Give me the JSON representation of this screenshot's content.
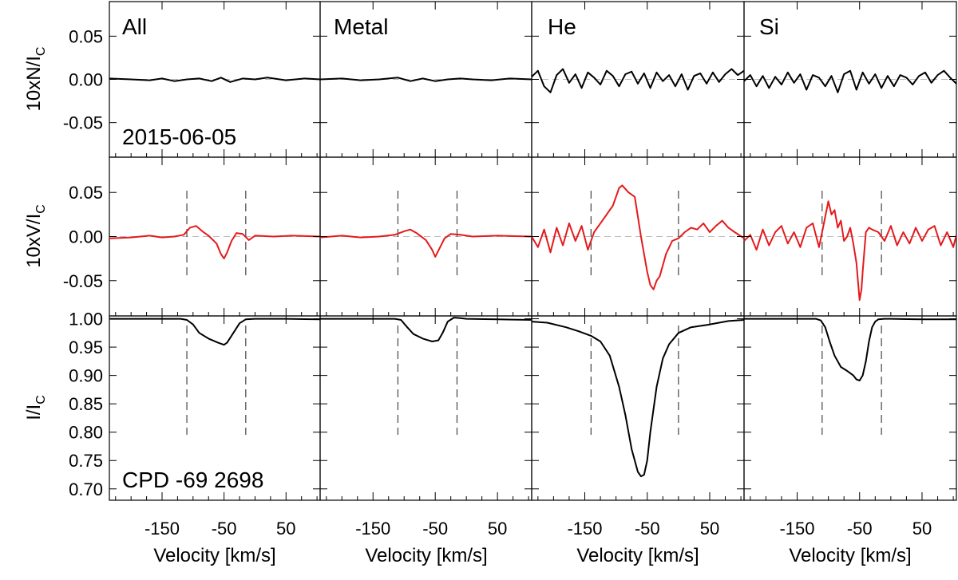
{
  "figure": {
    "date": "2015-06-05",
    "star": "CPD -69 2698",
    "columns": [
      "All",
      "Metal",
      "He",
      "Si"
    ],
    "xlabel": "Velocity [km/s]",
    "ylabels": {
      "N": "10xN/I",
      "V": "10xV/I",
      "I": "I/I",
      "subscript": "C"
    }
  },
  "chart_data": {
    "type": "line",
    "x_ticks": [
      -150,
      -50,
      50
    ],
    "xlim": [
      -235,
      105
    ],
    "rows": [
      {
        "id": "N",
        "ylim": [
          -0.09,
          0.09
        ],
        "yticks": [
          0.05,
          0.0,
          -0.05
        ],
        "ytick_labels": [
          "0.05",
          "0.00",
          "-0.05"
        ],
        "color": "#000000"
      },
      {
        "id": "V",
        "ylim": [
          -0.09,
          0.09
        ],
        "yticks": [
          0.05,
          0.0,
          -0.05
        ],
        "ytick_labels": [
          "0.05",
          "0.00",
          "-0.05"
        ],
        "color": "#e41a1c"
      },
      {
        "id": "I",
        "ylim": [
          0.68,
          1.005
        ],
        "yticks": [
          1.0,
          0.95,
          0.9,
          0.85,
          0.8,
          0.75,
          0.7
        ],
        "ytick_labels": [
          "1.00",
          "0.95",
          "0.90",
          "0.85",
          "0.80",
          "0.75",
          "0.70"
        ],
        "color": "#000000"
      }
    ],
    "integration_limits": {
      "All": [
        -110,
        -15
      ],
      "Metal": [
        -110,
        -15
      ],
      "He": [
        -140,
        0
      ],
      "Si": [
        -110,
        -15
      ]
    },
    "series": {
      "All": {
        "N": {
          "x": [
            -235,
            -200,
            -170,
            -150,
            -130,
            -110,
            -90,
            -70,
            -55,
            -40,
            -20,
            0,
            20,
            50,
            80,
            105
          ],
          "y": [
            0.001,
            0.0,
            -0.001,
            0.001,
            -0.002,
            0.0,
            0.001,
            -0.002,
            0.002,
            -0.003,
            0.001,
            0.0,
            0.002,
            -0.001,
            0.001,
            0.0
          ]
        },
        "V": {
          "x": [
            -235,
            -200,
            -170,
            -150,
            -130,
            -115,
            -105,
            -95,
            -85,
            -75,
            -62,
            -55,
            -50,
            -45,
            -38,
            -30,
            -20,
            -10,
            0,
            30,
            60,
            105
          ],
          "y": [
            -0.002,
            -0.001,
            0.001,
            -0.001,
            0.0,
            0.002,
            0.01,
            0.012,
            0.006,
            0.001,
            -0.008,
            -0.02,
            -0.025,
            -0.018,
            -0.005,
            0.004,
            0.003,
            -0.004,
            0.001,
            0.0,
            0.001,
            0.0
          ]
        },
        "I": {
          "x": [
            -235,
            -150,
            -120,
            -110,
            -100,
            -90,
            -75,
            -60,
            -50,
            -45,
            -35,
            -25,
            -15,
            0,
            50,
            105
          ],
          "y": [
            1.0,
            1.0,
            1.0,
            0.998,
            0.99,
            0.975,
            0.965,
            0.958,
            0.954,
            0.958,
            0.975,
            0.992,
            0.999,
            1.0,
            1.0,
            0.999
          ]
        }
      },
      "Metal": {
        "N": {
          "x": [
            -235,
            -200,
            -170,
            -140,
            -110,
            -90,
            -70,
            -50,
            -30,
            -10,
            10,
            40,
            70,
            105
          ],
          "y": [
            0.0,
            0.001,
            -0.001,
            0.0,
            0.002,
            -0.002,
            0.001,
            -0.002,
            0.0,
            0.001,
            0.0,
            -0.001,
            0.001,
            0.0
          ]
        },
        "V": {
          "x": [
            -235,
            -200,
            -170,
            -140,
            -115,
            -100,
            -90,
            -80,
            -65,
            -55,
            -50,
            -45,
            -35,
            -25,
            -10,
            10,
            50,
            105
          ],
          "y": [
            -0.001,
            0.001,
            -0.001,
            0.0,
            0.002,
            0.006,
            0.008,
            0.004,
            -0.004,
            -0.015,
            -0.023,
            -0.016,
            -0.002,
            0.003,
            0.002,
            0.0,
            0.001,
            0.0
          ]
        },
        "I": {
          "x": [
            -235,
            -150,
            -115,
            -105,
            -95,
            -85,
            -70,
            -55,
            -45,
            -38,
            -30,
            -20,
            -10,
            0,
            50,
            105
          ],
          "y": [
            1.0,
            1.0,
            1.0,
            0.998,
            0.985,
            0.973,
            0.965,
            0.96,
            0.962,
            0.975,
            0.995,
            1.002,
            1.001,
            1.0,
            0.999,
            0.998
          ]
        }
      },
      "He": {
        "N": {
          "x": [
            -235,
            -225,
            -215,
            -205,
            -195,
            -185,
            -175,
            -165,
            -155,
            -145,
            -135,
            -125,
            -115,
            -105,
            -95,
            -85,
            -75,
            -65,
            -55,
            -45,
            -35,
            -25,
            -15,
            -5,
            5,
            15,
            25,
            35,
            45,
            55,
            65,
            75,
            85,
            95,
            105
          ],
          "y": [
            0.003,
            0.01,
            -0.008,
            -0.015,
            0.005,
            0.012,
            -0.004,
            0.006,
            -0.01,
            0.008,
            0.002,
            -0.006,
            0.01,
            0.004,
            -0.008,
            0.006,
            0.009,
            -0.005,
            0.007,
            -0.01,
            0.008,
            -0.002,
            0.005,
            -0.008,
            0.006,
            -0.012,
            0.004,
            0.007,
            -0.005,
            0.008,
            -0.003,
            0.006,
            0.012,
            0.005,
            0.01
          ]
        },
        "V": {
          "x": [
            -235,
            -225,
            -215,
            -205,
            -195,
            -185,
            -175,
            -165,
            -155,
            -145,
            -135,
            -125,
            -115,
            -105,
            -95,
            -90,
            -80,
            -70,
            -60,
            -50,
            -45,
            -40,
            -35,
            -30,
            -20,
            -10,
            0,
            10,
            20,
            30,
            40,
            50,
            60,
            70,
            80,
            90,
            105
          ],
          "y": [
            0.0,
            -0.012,
            0.008,
            -0.018,
            0.01,
            -0.01,
            0.015,
            -0.005,
            0.012,
            -0.015,
            0.005,
            0.015,
            0.025,
            0.035,
            0.055,
            0.058,
            0.05,
            0.045,
            0.0,
            -0.04,
            -0.055,
            -0.06,
            -0.05,
            -0.045,
            -0.02,
            -0.005,
            -0.002,
            0.005,
            0.01,
            0.008,
            0.015,
            0.005,
            0.012,
            0.018,
            0.01,
            0.005,
            -0.002
          ]
        },
        "I": {
          "x": [
            -235,
            -210,
            -180,
            -160,
            -140,
            -125,
            -110,
            -95,
            -85,
            -75,
            -65,
            -60,
            -55,
            -50,
            -45,
            -35,
            -25,
            -15,
            0,
            20,
            50,
            80,
            105
          ],
          "y": [
            0.995,
            0.993,
            0.985,
            0.978,
            0.97,
            0.96,
            0.935,
            0.88,
            0.83,
            0.77,
            0.73,
            0.722,
            0.725,
            0.75,
            0.8,
            0.88,
            0.93,
            0.955,
            0.975,
            0.985,
            0.99,
            0.996,
            0.998
          ]
        }
      },
      "Si": {
        "N": {
          "x": [
            -235,
            -225,
            -215,
            -205,
            -195,
            -185,
            -175,
            -165,
            -155,
            -145,
            -135,
            -125,
            -115,
            -105,
            -95,
            -85,
            -75,
            -65,
            -55,
            -45,
            -35,
            -25,
            -15,
            -5,
            5,
            15,
            25,
            35,
            45,
            55,
            65,
            75,
            85,
            95,
            105
          ],
          "y": [
            -0.002,
            0.005,
            -0.008,
            0.004,
            -0.01,
            0.003,
            -0.006,
            0.008,
            -0.004,
            0.006,
            -0.012,
            0.005,
            0.002,
            -0.008,
            0.004,
            -0.015,
            0.006,
            0.01,
            -0.012,
            0.008,
            -0.005,
            0.006,
            -0.01,
            0.004,
            -0.008,
            0.005,
            0.002,
            -0.006,
            0.004,
            0.008,
            -0.004,
            0.005,
            0.01,
            0.002,
            -0.005
          ]
        },
        "V": {
          "x": [
            -235,
            -225,
            -215,
            -205,
            -195,
            -185,
            -175,
            -165,
            -155,
            -145,
            -135,
            -125,
            -115,
            -110,
            -100,
            -95,
            -90,
            -85,
            -80,
            -75,
            -70,
            -65,
            -60,
            -55,
            -50,
            -47,
            -45,
            -40,
            -35,
            -30,
            -20,
            -10,
            0,
            10,
            20,
            30,
            40,
            50,
            60,
            70,
            80,
            90,
            100,
            105
          ],
          "y": [
            -0.005,
            0.002,
            -0.015,
            0.008,
            -0.01,
            0.005,
            0.012,
            -0.008,
            0.005,
            -0.012,
            0.01,
            0.015,
            -0.012,
            0.005,
            0.04,
            0.025,
            0.03,
            0.01,
            0.018,
            -0.005,
            0.0,
            0.01,
            -0.008,
            -0.03,
            -0.072,
            -0.06,
            -0.04,
            0.005,
            0.01,
            0.008,
            0.005,
            -0.005,
            0.012,
            -0.01,
            0.005,
            -0.008,
            0.01,
            -0.005,
            0.008,
            0.012,
            -0.01,
            0.005,
            -0.012,
            0.002
          ]
        },
        "I": {
          "x": [
            -235,
            -150,
            -120,
            -112,
            -105,
            -98,
            -90,
            -80,
            -70,
            -60,
            -55,
            -50,
            -45,
            -40,
            -35,
            -30,
            -25,
            -20,
            -10,
            0,
            50,
            105
          ],
          "y": [
            1.0,
            1.0,
            1.0,
            0.997,
            0.985,
            0.96,
            0.935,
            0.915,
            0.908,
            0.9,
            0.893,
            0.891,
            0.9,
            0.925,
            0.96,
            0.985,
            0.995,
            0.999,
            1.0,
            1.0,
            0.999,
            0.999
          ]
        }
      }
    }
  }
}
